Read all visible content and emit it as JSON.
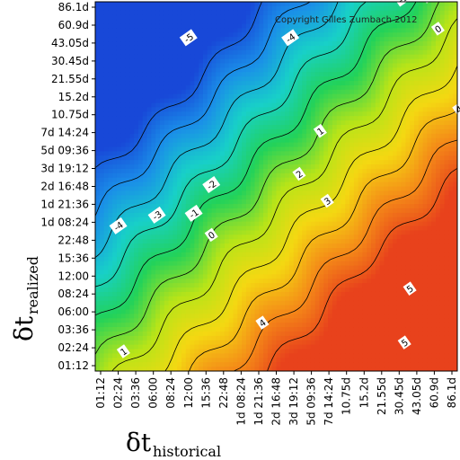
{
  "chart_data": {
    "type": "heatmap",
    "title": "",
    "copyright": "Copyright Gilles Zumbach 2012",
    "xlabel": {
      "symbol": "δt",
      "subscript": "historical"
    },
    "ylabel": {
      "symbol": "δt",
      "subscript": "realized"
    },
    "x_ticks": [
      "01:12",
      "02:24",
      "03:36",
      "06:00",
      "08:24",
      "12:00",
      "15:36",
      "22:48",
      "1d 08:24",
      "1d 21:36",
      "2d 16:48",
      "3d 19:12",
      "5d 09:36",
      "7d 14:24",
      "10.75d",
      "15.2d",
      "21.55d",
      "30.45d",
      "43.05d",
      "60.9d",
      "86.1d"
    ],
    "y_ticks": [
      "01:12",
      "02:24",
      "03:36",
      "06:00",
      "08:24",
      "12:00",
      "15:36",
      "22:48",
      "1d 08:24",
      "1d 21:36",
      "2d 16:48",
      "3d 19:12",
      "5d 09:36",
      "7d 14:24",
      "10.75d",
      "15.2d",
      "21.55d",
      "30.45d",
      "43.05d",
      "60.9d",
      "86.1d"
    ],
    "contour_levels": [
      -5,
      -4,
      -3,
      -2,
      -1,
      0,
      1,
      2,
      3,
      4,
      5
    ],
    "value_range": [
      -5.5,
      5.5
    ],
    "colorscale": [
      "#1848d8",
      "#1a8ee8",
      "#18d0c8",
      "#22d25a",
      "#b8e418",
      "#f4d812",
      "#f48a18",
      "#e8421c"
    ],
    "contour_labels": [
      {
        "text": "-5",
        "x": 1,
        "y": 21
      },
      {
        "text": "-5",
        "x": 5,
        "y": 18.3
      },
      {
        "text": "-4",
        "x": 10.8,
        "y": 18.3
      },
      {
        "text": "-1",
        "x": 17.2,
        "y": 20.5
      },
      {
        "text": "0",
        "x": 18.6,
        "y": 20.6
      },
      {
        "text": "0",
        "x": 19.2,
        "y": 18.8
      },
      {
        "text": "-4",
        "x": 1,
        "y": 7.8
      },
      {
        "text": "-3",
        "x": 3.2,
        "y": 8.4
      },
      {
        "text": "-2",
        "x": 6.3,
        "y": 10.1
      },
      {
        "text": "-1",
        "x": 5.3,
        "y": 8.5
      },
      {
        "text": "0",
        "x": 6.3,
        "y": 7.3
      },
      {
        "text": "1",
        "x": 12.5,
        "y": 13.1
      },
      {
        "text": "2",
        "x": 11.3,
        "y": 10.7
      },
      {
        "text": "3",
        "x": 12.9,
        "y": 9.2
      },
      {
        "text": "4",
        "x": 20.4,
        "y": 14.3
      },
      {
        "text": "4",
        "x": 9.2,
        "y": 2.4
      },
      {
        "text": "1",
        "x": 1.3,
        "y": 0.8
      },
      {
        "text": "5",
        "x": 17.6,
        "y": 4.3
      },
      {
        "text": "5",
        "x": 17.3,
        "y": 1.3
      }
    ]
  }
}
